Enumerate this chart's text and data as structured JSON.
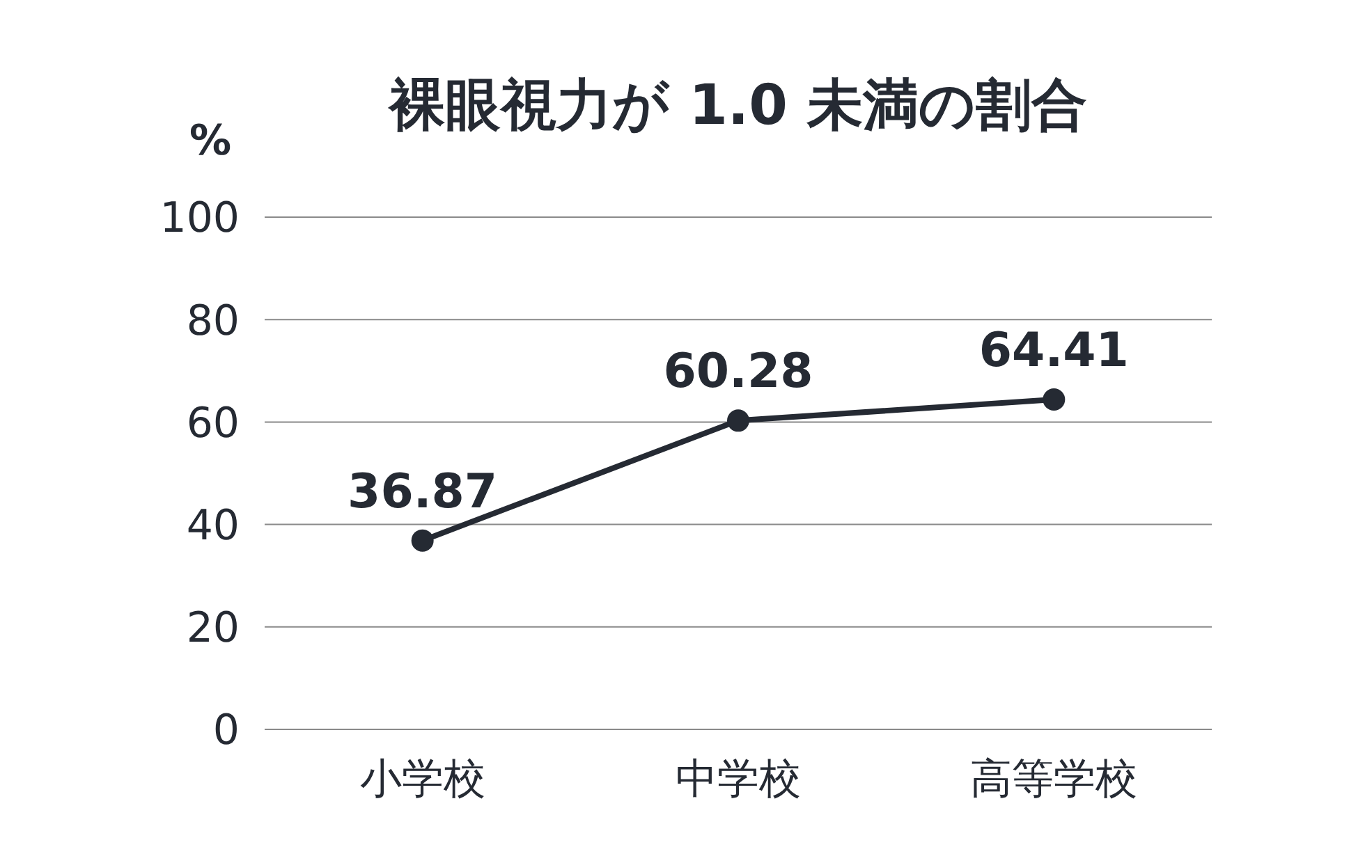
{
  "chart_data": {
    "type": "line",
    "title": "裸眼視力が 1.0 未満の割合",
    "ylabel": "%",
    "categories": [
      "小学校",
      "中学校",
      "高等学校"
    ],
    "values": [
      36.87,
      60.28,
      64.41
    ],
    "color": "#252a33",
    "ylim": [
      0,
      100
    ],
    "yticks": [
      0,
      20,
      40,
      60,
      80,
      100
    ],
    "grid": "y",
    "data_labels": true,
    "marker": "circle"
  }
}
